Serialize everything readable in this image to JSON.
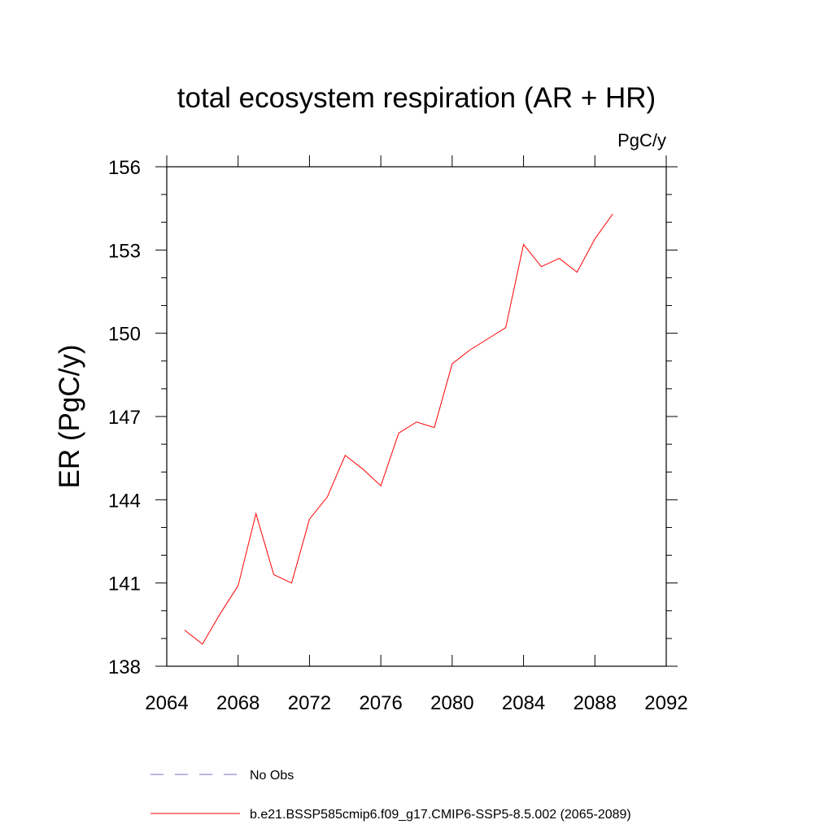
{
  "chart_data": {
    "type": "line",
    "title": "total ecosystem respiration (AR + HR)",
    "units": "PgC/y",
    "xlabel": "",
    "ylabel": "ER  (PgC/y)",
    "xlim": [
      2064,
      2092
    ],
    "ylim": [
      138,
      156
    ],
    "xticks": [
      2064,
      2068,
      2072,
      2076,
      2080,
      2084,
      2088,
      2092
    ],
    "xticklabels": [
      "2064",
      "2068",
      "2072",
      "2076",
      "2080",
      "2084",
      "2088",
      "2092"
    ],
    "yticks": [
      138,
      141,
      144,
      147,
      150,
      153,
      156
    ],
    "yticklabels": [
      "138",
      "141",
      "144",
      "147",
      "150",
      "153",
      "156"
    ],
    "grid": false,
    "legend_position": "bottom",
    "series": [
      {
        "name": "No Obs",
        "color": "#7b68c8",
        "dash": "dashed",
        "x": [],
        "y": []
      },
      {
        "name": "b.e21.BSSP585cmip6.f09_g17.CMIP6-SSP5-8.5.002 (2065-2089)",
        "color": "#ff0000",
        "dash": "solid",
        "x": [
          2065,
          2066,
          2067,
          2068,
          2069,
          2070,
          2071,
          2072,
          2073,
          2074,
          2075,
          2076,
          2077,
          2078,
          2079,
          2080,
          2081,
          2082,
          2083,
          2084,
          2085,
          2086,
          2087,
          2088,
          2089
        ],
        "y": [
          139.3,
          138.8,
          139.9,
          140.9,
          143.5,
          141.3,
          141.0,
          143.3,
          144.1,
          145.6,
          145.1,
          144.5,
          146.4,
          146.8,
          146.6,
          148.9,
          149.4,
          149.8,
          150.2,
          153.2,
          152.4,
          152.7,
          152.2,
          153.4,
          154.3
        ]
      }
    ]
  }
}
